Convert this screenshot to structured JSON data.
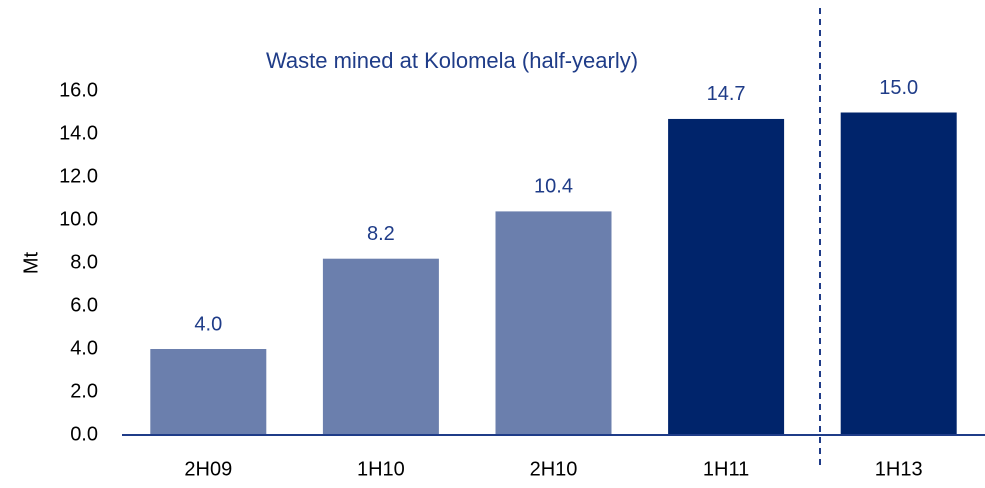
{
  "chart_data": {
    "type": "bar",
    "title": "Waste mined at Kolomela (half-yearly)",
    "y_label": "Mt",
    "categories": [
      "2H09",
      "1H10",
      "2H10",
      "1H11",
      "1H13"
    ],
    "values": [
      4.0,
      8.2,
      10.4,
      14.7,
      15.0
    ],
    "value_labels": [
      "4.0",
      "8.2",
      "10.4",
      "14.7",
      "15.0"
    ],
    "colors": [
      "#6b7fad",
      "#6b7fad",
      "#6b7fad",
      "#00246b",
      "#00246b"
    ],
    "ylim": [
      0,
      16
    ],
    "yticks": [
      {
        "value": 0,
        "label": "0.0"
      },
      {
        "value": 2,
        "label": "2.0"
      },
      {
        "value": 4,
        "label": "4.0"
      },
      {
        "value": 6,
        "label": "6.0"
      },
      {
        "value": 8,
        "label": "8.0"
      },
      {
        "value": 10,
        "label": "10.0"
      },
      {
        "value": 12,
        "label": "12.0"
      },
      {
        "value": 14,
        "label": "14.0"
      },
      {
        "value": 16,
        "label": "16.0"
      }
    ],
    "grid": false
  }
}
